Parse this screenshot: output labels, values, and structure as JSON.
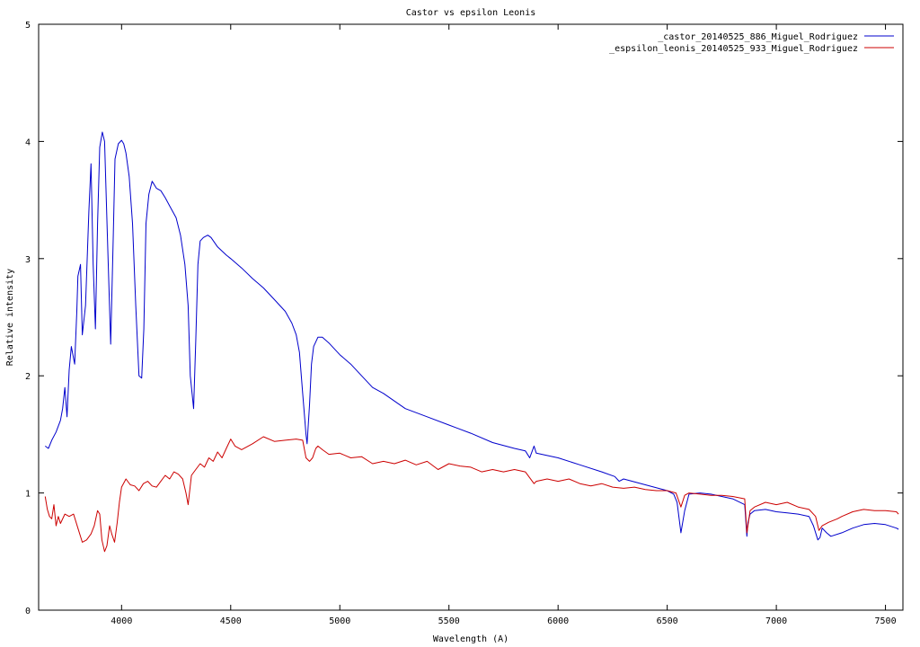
{
  "chart_data": {
    "type": "line",
    "title": "Castor vs epsilon Leonis",
    "xlabel": "Wavelength (A)",
    "ylabel": "Relative intensity",
    "xlim": [
      3620,
      7580
    ],
    "ylim": [
      0,
      5
    ],
    "xticks": [
      4000,
      4500,
      5000,
      5500,
      6000,
      6500,
      7000,
      7500
    ],
    "yticks": [
      0,
      1,
      2,
      3,
      4,
      5
    ],
    "grid": false,
    "legend_position": "top-right",
    "series": [
      {
        "name": "_castor_20140525_886_Miguel_Rodriguez",
        "color": "#0000cc",
        "x": [
          3650,
          3665,
          3680,
          3700,
          3720,
          3730,
          3740,
          3750,
          3760,
          3770,
          3785,
          3795,
          3800,
          3812,
          3820,
          3835,
          3850,
          3860,
          3870,
          3880,
          3890,
          3900,
          3912,
          3922,
          3935,
          3950,
          3962,
          3970,
          3985,
          4000,
          4010,
          4020,
          4035,
          4050,
          4065,
          4080,
          4092,
          4102,
          4112,
          4125,
          4140,
          4160,
          4180,
          4200,
          4220,
          4250,
          4270,
          4290,
          4305,
          4315,
          4330,
          4340,
          4350,
          4360,
          4375,
          4395,
          4410,
          4440,
          4480,
          4500,
          4550,
          4600,
          4650,
          4700,
          4750,
          4780,
          4800,
          4815,
          4830,
          4845,
          4850,
          4861,
          4870,
          4880,
          4900,
          4920,
          4950,
          5000,
          5050,
          5100,
          5150,
          5200,
          5300,
          5400,
          5500,
          5600,
          5700,
          5800,
          5850,
          5870,
          5890,
          5900,
          5950,
          6000,
          6100,
          6200,
          6260,
          6280,
          6300,
          6400,
          6500,
          6530,
          6545,
          6563,
          6580,
          6600,
          6650,
          6700,
          6750,
          6800,
          6855,
          6865,
          6870,
          6880,
          6900,
          6950,
          7000,
          7050,
          7100,
          7150,
          7170,
          7190,
          7200,
          7210,
          7230,
          7250,
          7300,
          7350,
          7400,
          7450,
          7500,
          7550,
          7560
        ],
        "y": [
          1.4,
          1.38,
          1.45,
          1.52,
          1.62,
          1.72,
          1.9,
          1.65,
          2.05,
          2.25,
          2.1,
          2.55,
          2.85,
          2.95,
          2.35,
          2.6,
          3.4,
          3.81,
          2.95,
          2.4,
          3.3,
          3.95,
          4.08,
          4.0,
          3.2,
          2.27,
          3.2,
          3.85,
          3.98,
          4.01,
          3.98,
          3.9,
          3.7,
          3.3,
          2.6,
          2.0,
          1.98,
          2.4,
          3.3,
          3.55,
          3.66,
          3.6,
          3.58,
          3.52,
          3.45,
          3.35,
          3.2,
          2.95,
          2.6,
          2.0,
          1.72,
          2.3,
          2.95,
          3.15,
          3.18,
          3.2,
          3.18,
          3.1,
          3.03,
          3.0,
          2.92,
          2.83,
          2.75,
          2.65,
          2.55,
          2.45,
          2.35,
          2.2,
          1.85,
          1.5,
          1.42,
          1.75,
          2.1,
          2.25,
          2.33,
          2.33,
          2.28,
          2.18,
          2.1,
          2.0,
          1.9,
          1.85,
          1.72,
          1.65,
          1.58,
          1.51,
          1.43,
          1.38,
          1.36,
          1.3,
          1.4,
          1.34,
          1.32,
          1.3,
          1.24,
          1.18,
          1.14,
          1.1,
          1.12,
          1.07,
          1.02,
          0.99,
          0.92,
          0.66,
          0.85,
          0.99,
          1.0,
          0.99,
          0.97,
          0.95,
          0.9,
          0.63,
          0.75,
          0.82,
          0.85,
          0.86,
          0.84,
          0.83,
          0.82,
          0.8,
          0.72,
          0.6,
          0.62,
          0.7,
          0.66,
          0.63,
          0.66,
          0.7,
          0.73,
          0.74,
          0.73,
          0.7,
          0.69
        ]
      },
      {
        "name": "_espsilon_leonis_20140525_933_Miguel_Rodriguez",
        "color": "#cc0000",
        "x": [
          3650,
          3660,
          3670,
          3680,
          3690,
          3700,
          3710,
          3720,
          3740,
          3760,
          3780,
          3800,
          3820,
          3840,
          3860,
          3875,
          3890,
          3900,
          3910,
          3922,
          3933,
          3945,
          3955,
          3968,
          3980,
          3990,
          4000,
          4020,
          4040,
          4060,
          4080,
          4100,
          4120,
          4140,
          4160,
          4180,
          4200,
          4220,
          4240,
          4260,
          4280,
          4295,
          4305,
          4320,
          4340,
          4360,
          4380,
          4400,
          4420,
          4440,
          4460,
          4480,
          4500,
          4520,
          4550,
          4600,
          4650,
          4700,
          4750,
          4800,
          4830,
          4845,
          4861,
          4875,
          4890,
          4900,
          4920,
          4950,
          5000,
          5050,
          5100,
          5150,
          5200,
          5250,
          5300,
          5350,
          5400,
          5450,
          5500,
          5550,
          5600,
          5650,
          5700,
          5750,
          5800,
          5850,
          5890,
          5900,
          5950,
          6000,
          6050,
          6100,
          6150,
          6200,
          6250,
          6300,
          6350,
          6400,
          6450,
          6500,
          6540,
          6563,
          6580,
          6600,
          6650,
          6700,
          6750,
          6800,
          6855,
          6865,
          6880,
          6900,
          6950,
          7000,
          7050,
          7100,
          7150,
          7180,
          7195,
          7210,
          7240,
          7280,
          7300,
          7350,
          7400,
          7450,
          7500,
          7550,
          7560
        ],
        "y": [
          0.97,
          0.86,
          0.8,
          0.78,
          0.9,
          0.72,
          0.8,
          0.74,
          0.82,
          0.8,
          0.82,
          0.7,
          0.58,
          0.6,
          0.65,
          0.72,
          0.85,
          0.82,
          0.6,
          0.5,
          0.55,
          0.72,
          0.65,
          0.58,
          0.75,
          0.92,
          1.05,
          1.12,
          1.07,
          1.06,
          1.02,
          1.08,
          1.1,
          1.06,
          1.05,
          1.1,
          1.15,
          1.12,
          1.18,
          1.16,
          1.12,
          1.0,
          0.9,
          1.15,
          1.2,
          1.25,
          1.22,
          1.3,
          1.27,
          1.35,
          1.3,
          1.38,
          1.46,
          1.4,
          1.37,
          1.42,
          1.48,
          1.44,
          1.45,
          1.46,
          1.45,
          1.3,
          1.27,
          1.3,
          1.38,
          1.4,
          1.37,
          1.33,
          1.34,
          1.3,
          1.31,
          1.25,
          1.27,
          1.25,
          1.28,
          1.24,
          1.27,
          1.2,
          1.25,
          1.23,
          1.22,
          1.18,
          1.2,
          1.18,
          1.2,
          1.18,
          1.08,
          1.1,
          1.12,
          1.1,
          1.12,
          1.08,
          1.06,
          1.08,
          1.05,
          1.04,
          1.05,
          1.03,
          1.02,
          1.02,
          1.0,
          0.88,
          0.98,
          1.0,
          0.99,
          0.98,
          0.98,
          0.97,
          0.95,
          0.66,
          0.85,
          0.88,
          0.92,
          0.9,
          0.92,
          0.88,
          0.86,
          0.8,
          0.68,
          0.72,
          0.75,
          0.78,
          0.8,
          0.84,
          0.86,
          0.85,
          0.85,
          0.84,
          0.82
        ]
      }
    ]
  }
}
